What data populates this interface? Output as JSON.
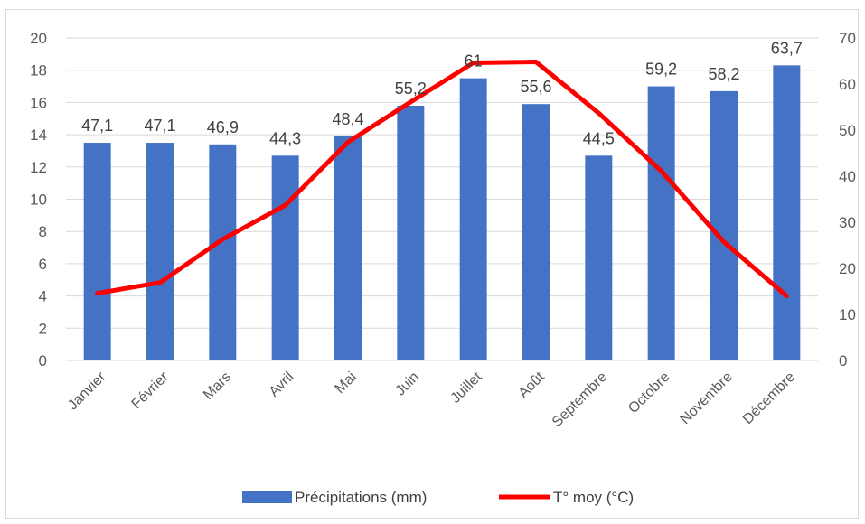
{
  "chart_data": {
    "type": "bar",
    "categories": [
      "Janvier",
      "Février",
      "Mars",
      "Avril",
      "Mai",
      "Juin",
      "Juillet",
      "Août",
      "Septembre",
      "Octobre",
      "Novembre",
      "Décembre"
    ],
    "series": [
      {
        "name": "Précipitations (mm)",
        "type": "bar",
        "axis": "left",
        "values": [
          13.5,
          13.5,
          13.4,
          12.7,
          13.9,
          15.8,
          17.5,
          15.9,
          12.7,
          17.0,
          16.7,
          18.3
        ],
        "data_labels": [
          "47,1",
          "47,1",
          "46,9",
          "44,3",
          "48,4",
          "55,2",
          "61",
          "55,6",
          "44,5",
          "59,2",
          "58,2",
          "63,7"
        ],
        "color": "#4472c4"
      },
      {
        "name": "T° moy (°C)",
        "type": "line",
        "axis": "right",
        "values": [
          14.6,
          16.9,
          26.3,
          33.7,
          47.4,
          56.1,
          64.6,
          64.8,
          53.7,
          41.1,
          25.7,
          14.0
        ],
        "color": "#ff0000"
      }
    ],
    "y_left": {
      "range": [
        0,
        20
      ],
      "ticks": [
        "0",
        "2",
        "4",
        "6",
        "8",
        "10",
        "12",
        "14",
        "16",
        "18",
        "20"
      ]
    },
    "y_right": {
      "range": [
        0,
        70
      ],
      "ticks": [
        "0",
        "10",
        "20",
        "30",
        "40",
        "50",
        "60",
        "70"
      ]
    },
    "title": "",
    "xlabel": "",
    "ylabel": "",
    "grid": true,
    "legend_position": "bottom",
    "grid_color": "#d9d9d9"
  }
}
